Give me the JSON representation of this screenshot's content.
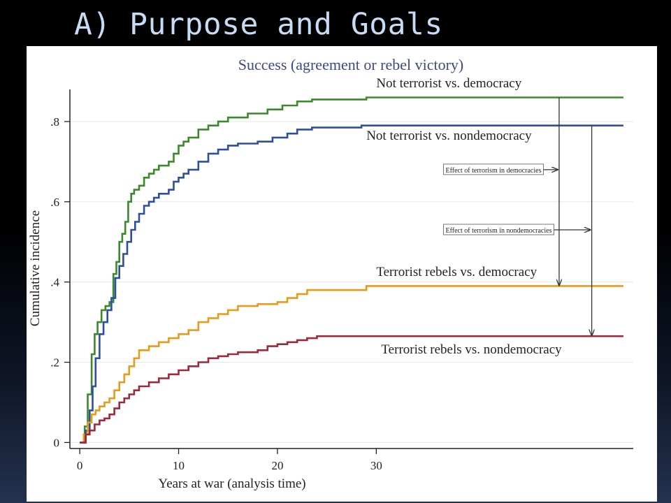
{
  "slide": {
    "title": "A) Purpose and Goals"
  },
  "chart_data": {
    "type": "line",
    "step": true,
    "title": "Success (agreement or rebel victory)",
    "xlabel": "Years at war (analysis time)",
    "ylabel": "Cumulative incidence",
    "xlim": [
      -1,
      56
    ],
    "ylim": [
      -0.015,
      0.88
    ],
    "xticks": [
      0,
      10,
      20,
      30
    ],
    "xtick_labels": [
      "0",
      "10",
      "20",
      "30"
    ],
    "yticks": [
      0,
      0.2,
      0.4,
      0.6,
      0.8
    ],
    "ytick_labels": [
      "0",
      ".2",
      ".4",
      ".6",
      ".8"
    ],
    "grid": "horizontal",
    "series": [
      {
        "name": "Not terrorist vs. democracy",
        "color": "#3a8a2c",
        "x": [
          0,
          0.5,
          0.8,
          1.2,
          1.5,
          1.8,
          2.2,
          2.6,
          3.0,
          3.4,
          3.7,
          4.0,
          4.3,
          4.6,
          4.9,
          5.2,
          5.5,
          6.0,
          6.5,
          7.0,
          7.5,
          8.0,
          9.0,
          9.5,
          10.0,
          10.5,
          11.0,
          12.0,
          13.0,
          14.0,
          15.0,
          17.0,
          19.0,
          20.5,
          22.0,
          23.5,
          29.0,
          55.0
        ],
        "y": [
          0,
          0.04,
          0.12,
          0.22,
          0.27,
          0.3,
          0.33,
          0.34,
          0.35,
          0.42,
          0.45,
          0.5,
          0.52,
          0.55,
          0.6,
          0.62,
          0.63,
          0.64,
          0.66,
          0.67,
          0.68,
          0.69,
          0.7,
          0.72,
          0.74,
          0.75,
          0.76,
          0.78,
          0.79,
          0.8,
          0.81,
          0.82,
          0.83,
          0.84,
          0.85,
          0.855,
          0.86,
          0.86
        ]
      },
      {
        "name": "Not terrorist vs. nondemocracy",
        "color": "#2e4e9e",
        "x": [
          0,
          0.6,
          1.0,
          1.3,
          1.6,
          2.0,
          2.4,
          2.8,
          3.2,
          3.6,
          4.0,
          4.4,
          4.8,
          5.2,
          5.6,
          6.0,
          6.5,
          7.0,
          7.5,
          8.0,
          9.0,
          9.5,
          10.0,
          10.5,
          11.0,
          12.0,
          13.0,
          14.0,
          15.0,
          16.0,
          18.0,
          19.5,
          21.0,
          22.0,
          23.5,
          28.5,
          55.0
        ],
        "y": [
          0,
          0.03,
          0.08,
          0.14,
          0.21,
          0.27,
          0.3,
          0.33,
          0.36,
          0.41,
          0.44,
          0.47,
          0.5,
          0.53,
          0.55,
          0.57,
          0.59,
          0.6,
          0.61,
          0.62,
          0.63,
          0.65,
          0.66,
          0.67,
          0.68,
          0.7,
          0.72,
          0.73,
          0.74,
          0.745,
          0.75,
          0.76,
          0.77,
          0.78,
          0.785,
          0.79,
          0.79
        ]
      },
      {
        "name": "Terrorist rebels vs. democracy",
        "color": "#e89b1a",
        "x": [
          0,
          0.4,
          0.8,
          1.2,
          1.6,
          2.0,
          2.5,
          3.0,
          3.5,
          4.0,
          4.5,
          5.0,
          5.5,
          6.0,
          7.0,
          8.0,
          9.0,
          10.0,
          11.0,
          12.0,
          13.0,
          14.0,
          15.0,
          16.0,
          18.0,
          20.0,
          21.0,
          22.0,
          23.0,
          29.0,
          55.0
        ],
        "y": [
          0,
          0.02,
          0.05,
          0.07,
          0.08,
          0.09,
          0.1,
          0.11,
          0.13,
          0.15,
          0.17,
          0.19,
          0.21,
          0.23,
          0.24,
          0.25,
          0.26,
          0.27,
          0.28,
          0.3,
          0.31,
          0.32,
          0.33,
          0.34,
          0.345,
          0.35,
          0.36,
          0.37,
          0.38,
          0.39,
          0.39
        ]
      },
      {
        "name": "Terrorist rebels vs. nondemocracy",
        "color": "#9a2a3c",
        "x": [
          0,
          0.6,
          1.0,
          1.5,
          2.0,
          2.5,
          3.0,
          3.5,
          4.0,
          4.5,
          5.0,
          5.5,
          6.0,
          7.0,
          8.0,
          9.0,
          10.0,
          11.0,
          12.0,
          13.0,
          14.0,
          15.0,
          16.0,
          18.0,
          19.0,
          20.0,
          21.0,
          22.0,
          23.0,
          24.0,
          28.5,
          55.0
        ],
        "y": [
          0,
          0.02,
          0.03,
          0.045,
          0.055,
          0.06,
          0.07,
          0.085,
          0.1,
          0.11,
          0.12,
          0.13,
          0.14,
          0.15,
          0.16,
          0.17,
          0.18,
          0.19,
          0.2,
          0.21,
          0.215,
          0.22,
          0.225,
          0.23,
          0.24,
          0.245,
          0.25,
          0.255,
          0.26,
          0.265,
          0.265,
          0.265
        ]
      }
    ],
    "annotations": [
      {
        "text": "Not terrorist vs. democracy",
        "x": 30.0,
        "y": 0.885
      },
      {
        "text": "Not terrorist vs. nondemocracy",
        "x": 29.0,
        "y": 0.755
      },
      {
        "text": "Terrorist rebels vs. democracy",
        "x": 30.0,
        "y": 0.415
      },
      {
        "text": "Terrorist rebels vs. nondemocracy",
        "x": 30.5,
        "y": 0.222
      }
    ],
    "arrows": [
      {
        "label": "Effect of terrorism in democracies",
        "x": 48.5,
        "from_y": 0.86,
        "to_y": 0.39,
        "label_x": 36.8,
        "label_y": 0.68
      },
      {
        "label": "Effect of terrorism in nondemocracies",
        "x": 51.8,
        "from_y": 0.79,
        "to_y": 0.265,
        "label_x": 36.8,
        "label_y": 0.53
      }
    ]
  }
}
